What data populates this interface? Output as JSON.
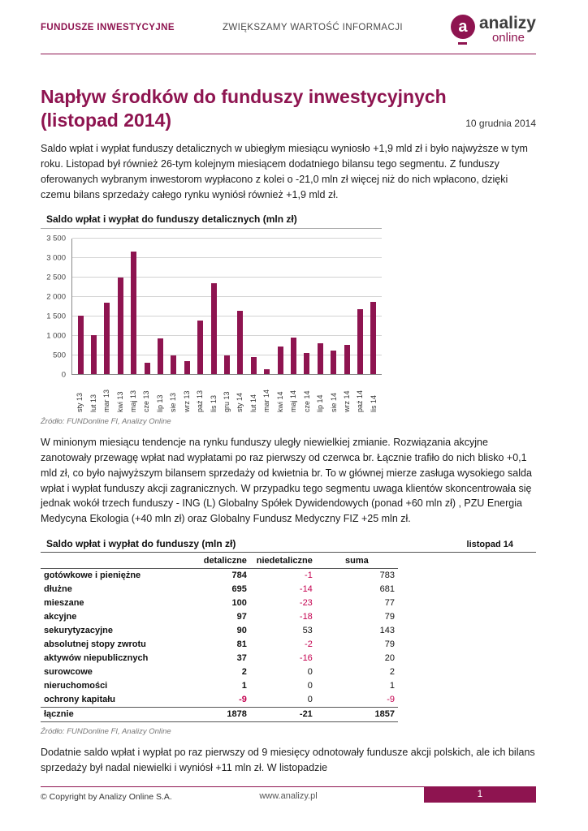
{
  "theme": {
    "accent": "#8e1450",
    "negative": "#c4004f",
    "bar_color": "#8e1450"
  },
  "header": {
    "left": "FUNDUSZE INWESTYCYJNE",
    "center": "ZWIĘKSZAMY WARTOŚĆ INFORMACJI",
    "logo": {
      "letter": "a",
      "name": "analizy",
      "suffix": "online"
    }
  },
  "article": {
    "title_line1": "Napływ środków do funduszy inwestycyjnych",
    "title_line2": "(listopad 2014)",
    "date": "10 grudnia 2014",
    "paragraph1": "Saldo wpłat i wypłat funduszy detalicznych w ubiegłym miesiącu wyniosło +1,9 mld zł i było najwyższe w tym roku. Listopad był również 26-tym kolejnym miesiącem dodatniego bilansu tego segmentu. Z funduszy oferowanych wybranym inwestorom wypłacono z kolei o -21,0 mln zł więcej niż do nich wpłacono, dzięki czemu bilans sprzedaży całego rynku wyniósł również +1,9 mld zł.",
    "paragraph2": "W minionym miesiącu tendencje na rynku funduszy uległy niewielkiej zmianie. Rozwiązania akcyjne zanotowały przewagę wpłat nad wypłatami po raz pierwszy od czerwca br. Łącznie trafiło do nich blisko +0,1 mld zł, co było najwyższym bilansem sprzedaży od kwietnia br. To w głównej mierze zasługa wysokiego salda wpłat i wypłat funduszy akcji zagranicznych. W przypadku tego segmentu uwaga klientów skoncentrowała się jednak wokół trzech funduszy - ING (L) Globalny Spółek Dywidendowych (ponad +60 mln zł) , PZU Energia Medycyna Ekologia (+40 mln zł) oraz Globalny Fundusz Medyczny FIZ +25 mln zł.",
    "paragraph3": "Dodatnie saldo wpłat i wypłat po raz pierwszy od 9 miesięcy odnotowały fundusze akcji polskich, ale ich bilans sprzedaży był nadal niewielki i wyniósł +11 mln zł. W listopadzie"
  },
  "chart_data": {
    "type": "bar",
    "title": "Saldo wpłat i wypłat do funduszy detalicznych (mln zł)",
    "categories": [
      "sty 13",
      "lut 13",
      "mar 13",
      "kwi 13",
      "maj 13",
      "cze 13",
      "lip 13",
      "sie 13",
      "wrz 13",
      "paź 13",
      "lis 13",
      "gru 13",
      "sty 14",
      "lut 14",
      "mar 14",
      "kwi 14",
      "maj 14",
      "cze 14",
      "lip 14",
      "sie 14",
      "wrz 14",
      "paź 14",
      "lis 14"
    ],
    "values": [
      1520,
      1010,
      1860,
      2500,
      3170,
      310,
      940,
      490,
      350,
      1390,
      2360,
      500,
      1650,
      450,
      140,
      720,
      960,
      550,
      810,
      620,
      760,
      1690,
      1878
    ],
    "xlabel": "",
    "ylabel": "",
    "ylim": [
      0,
      3500
    ],
    "ytick_labels": [
      "0",
      "500",
      "1 000",
      "1 500",
      "2 000",
      "2 500",
      "3 000",
      "3 500"
    ],
    "grid": true,
    "legend": false,
    "source": "Źródło: FUNDonline FI, Analizy Online"
  },
  "table": {
    "title": "Saldo wpłat i wypłat do funduszy (mln zł)",
    "period": "listopad 14",
    "columns": [
      "detaliczne",
      "niedetaliczne",
      "suma"
    ],
    "rows": [
      {
        "label": "gotówkowe i pieniężne",
        "values": [
          784,
          -1,
          783
        ]
      },
      {
        "label": "dłużne",
        "values": [
          695,
          -14,
          681
        ]
      },
      {
        "label": "mieszane",
        "values": [
          100,
          -23,
          77
        ]
      },
      {
        "label": "akcyjne",
        "values": [
          97,
          -18,
          79
        ]
      },
      {
        "label": "sekurytyzacyjne",
        "values": [
          90,
          53,
          143
        ]
      },
      {
        "label": "absolutnej stopy zwrotu",
        "values": [
          81,
          -2,
          79
        ]
      },
      {
        "label": "aktywów niepublicznych",
        "values": [
          37,
          -16,
          20
        ]
      },
      {
        "label": "surowcowe",
        "values": [
          2,
          0,
          2
        ]
      },
      {
        "label": "nieruchomości",
        "values": [
          1,
          0,
          1
        ]
      },
      {
        "label": "ochrony kapitału",
        "values": [
          -9,
          0,
          -9
        ]
      }
    ],
    "total": {
      "label": "łącznie",
      "values": [
        1878,
        -21,
        1857
      ]
    },
    "source": "Źródło: FUNDonline FI, Analizy Online"
  },
  "footer": {
    "copyright": "© Copyright by Analizy Online S.A.",
    "url": "www.analizy.pl",
    "page": "1"
  }
}
